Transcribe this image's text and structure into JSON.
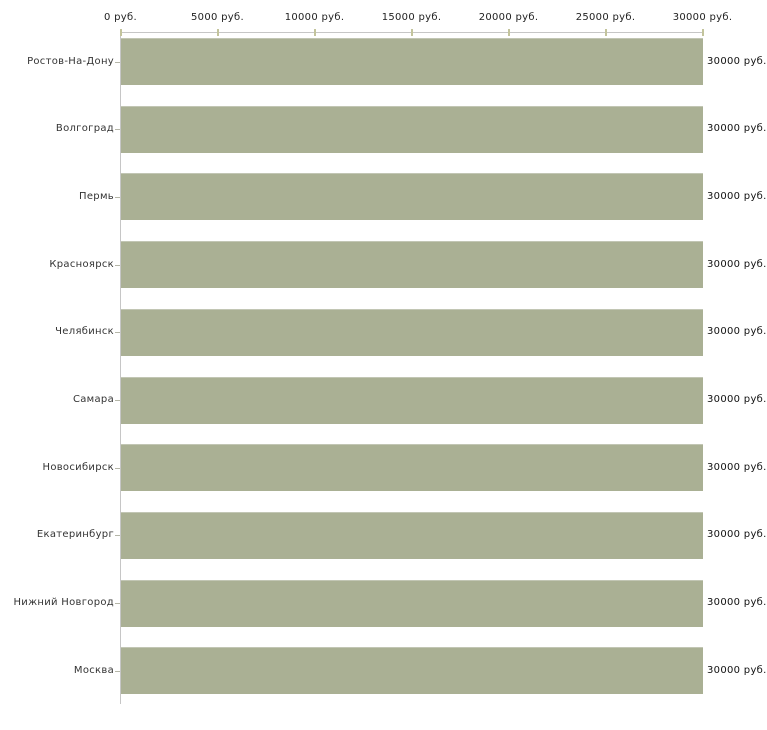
{
  "chart_data": {
    "type": "bar",
    "orientation": "horizontal",
    "title": "",
    "xlabel": "",
    "ylabel": "",
    "grid": false,
    "legend": false,
    "xlim": [
      0,
      30000
    ],
    "unit": "руб.",
    "categories": [
      "Ростов-На-Дону",
      "Волгоград",
      "Пермь",
      "Красноярск",
      "Челябинск",
      "Самара",
      "Новосибирск",
      "Екатеринбург",
      "Нижний Новгород",
      "Москва"
    ],
    "values": [
      30000,
      30000,
      30000,
      30000,
      30000,
      30000,
      30000,
      30000,
      30000,
      30000
    ],
    "value_labels": [
      "30000 руб.",
      "30000 руб.",
      "30000 руб.",
      "30000 руб.",
      "30000 руб.",
      "30000 руб.",
      "30000 руб.",
      "30000 руб.",
      "30000 руб.",
      "30000 руб."
    ],
    "x_tick_values": [
      0,
      5000,
      10000,
      15000,
      20000,
      25000,
      30000
    ],
    "x_tick_labels": [
      "0 руб.",
      "5000 руб.",
      "10000 руб.",
      "15000 руб.",
      "20000 руб.",
      "25000 руб.",
      "30000 руб."
    ],
    "colors": {
      "bar": "#aab094",
      "bar_top_edge": "#c2c6b4",
      "axis_line": "#c6c6c6",
      "x_tick_mark": "#c3c49c",
      "y_tick_mark": "#b5b6a8",
      "tick_text": "#222222",
      "category_text": "#333333",
      "value_text": "#111111",
      "background": "#ffffff"
    }
  }
}
